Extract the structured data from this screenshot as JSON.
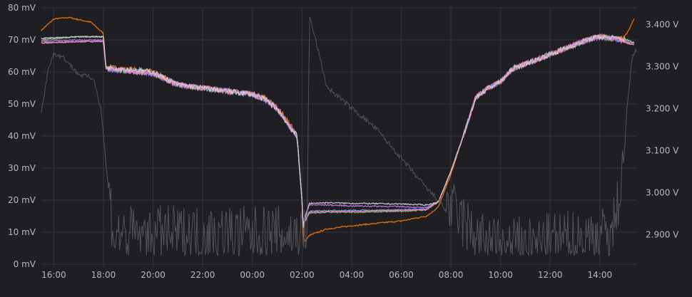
{
  "chart_data": {
    "type": "line",
    "grid": true,
    "legend": "none",
    "x": {
      "ticks": [
        "16:00",
        "18:00",
        "20:00",
        "22:00",
        "00:00",
        "02:00",
        "04:00",
        "06:00",
        "08:00",
        "10:00",
        "12:00",
        "14:00"
      ],
      "range_hours": [
        15.5,
        39.5
      ]
    },
    "y_left": {
      "ticks": [
        "0 mV",
        "10 mV",
        "20 mV",
        "30 mV",
        "40 mV",
        "50 mV",
        "60 mV",
        "70 mV",
        "80 mV"
      ],
      "range": [
        0,
        80
      ],
      "unit": "mV"
    },
    "y_right": {
      "ticks": [
        "2.900 V",
        "3.000 V",
        "3.100 V",
        "3.200 V",
        "3.300 V",
        "3.400 V"
      ],
      "range": [
        2.83,
        3.44
      ],
      "unit": "V"
    },
    "colors": {
      "orange": "#e8740f",
      "green": "#73bf69",
      "blue": "#5794f2",
      "purple": "#b877d9",
      "pink": "#ff7eb3",
      "gray": "#5a5a60",
      "light": "#c8c8cc"
    },
    "series": [
      {
        "color": "orange",
        "axis": "left",
        "points": [
          [
            15.5,
            73
          ],
          [
            16.0,
            76.5
          ],
          [
            16.6,
            77
          ],
          [
            17.5,
            75.5
          ],
          [
            18.0,
            72
          ],
          [
            18.1,
            61.5
          ],
          [
            20,
            60
          ],
          [
            21,
            56
          ],
          [
            22,
            55
          ],
          [
            23,
            54
          ],
          [
            24,
            53
          ],
          [
            24.5,
            52
          ],
          [
            25,
            49
          ],
          [
            25.5,
            44
          ],
          [
            25.8,
            40
          ],
          [
            26.0,
            20
          ],
          [
            26.05,
            9
          ],
          [
            26.1,
            7
          ],
          [
            26.3,
            9
          ],
          [
            27,
            11
          ],
          [
            28,
            12
          ],
          [
            30,
            13.5
          ],
          [
            31,
            15
          ],
          [
            31.2,
            16
          ],
          [
            31.5,
            18
          ],
          [
            32.0,
            28
          ],
          [
            32.5,
            40
          ],
          [
            33.0,
            52
          ],
          [
            33.5,
            55
          ],
          [
            34,
            57
          ],
          [
            34.5,
            61
          ],
          [
            35.5,
            64
          ],
          [
            36.5,
            67
          ],
          [
            37.5,
            70
          ],
          [
            38,
            71
          ],
          [
            38.8,
            70.5
          ],
          [
            39.1,
            72
          ],
          [
            39.4,
            77
          ]
        ]
      },
      {
        "color": "green",
        "axis": "left",
        "points": [
          [
            15.5,
            70
          ],
          [
            17,
            71
          ],
          [
            18.0,
            71
          ],
          [
            18.1,
            61
          ],
          [
            20,
            59.5
          ],
          [
            21,
            56
          ],
          [
            22,
            55
          ],
          [
            23,
            54
          ],
          [
            24,
            53
          ],
          [
            24.5,
            51.5
          ],
          [
            25,
            48.5
          ],
          [
            25.5,
            43
          ],
          [
            25.8,
            40
          ],
          [
            26.0,
            20
          ],
          [
            26.05,
            11
          ],
          [
            26.1,
            13
          ],
          [
            26.3,
            16
          ],
          [
            27,
            16.2
          ],
          [
            28,
            16.2
          ],
          [
            30,
            16.5
          ],
          [
            31,
            17
          ],
          [
            31.2,
            18
          ],
          [
            31.5,
            19.5
          ],
          [
            32.0,
            29
          ],
          [
            32.5,
            40
          ],
          [
            33.0,
            52
          ],
          [
            33.5,
            55
          ],
          [
            34,
            57
          ],
          [
            34.5,
            61
          ],
          [
            35.5,
            64
          ],
          [
            36.5,
            67
          ],
          [
            37.5,
            70
          ],
          [
            38,
            71
          ],
          [
            38.8,
            70
          ],
          [
            39.1,
            69.5
          ],
          [
            39.4,
            69
          ]
        ]
      },
      {
        "color": "blue",
        "axis": "left",
        "points": [
          [
            15.5,
            69
          ],
          [
            17,
            69.5
          ],
          [
            18.0,
            69.5
          ],
          [
            18.1,
            61
          ],
          [
            20,
            59.5
          ],
          [
            21,
            56
          ],
          [
            22,
            55
          ],
          [
            23,
            54
          ],
          [
            24,
            53
          ],
          [
            24.5,
            51.5
          ],
          [
            25,
            48.5
          ],
          [
            25.5,
            43
          ],
          [
            25.8,
            40
          ],
          [
            26.0,
            20
          ],
          [
            26.05,
            11
          ],
          [
            26.1,
            13.5
          ],
          [
            26.3,
            16.5
          ],
          [
            27,
            16.8
          ],
          [
            28,
            16.8
          ],
          [
            30,
            17
          ],
          [
            31,
            17.3
          ],
          [
            31.2,
            18.3
          ],
          [
            31.5,
            19.5
          ],
          [
            32.0,
            29
          ],
          [
            32.5,
            40
          ],
          [
            33.0,
            52
          ],
          [
            33.5,
            55
          ],
          [
            34,
            57
          ],
          [
            34.5,
            61
          ],
          [
            35.5,
            64
          ],
          [
            36.5,
            67
          ],
          [
            37.5,
            70
          ],
          [
            38,
            71
          ],
          [
            38.8,
            70
          ],
          [
            39.1,
            69
          ],
          [
            39.4,
            68.5
          ]
        ]
      },
      {
        "color": "purple",
        "axis": "left",
        "points": [
          [
            15.5,
            69.5
          ],
          [
            17,
            70
          ],
          [
            18.0,
            70
          ],
          [
            18.1,
            61
          ],
          [
            20,
            59.5
          ],
          [
            21,
            56
          ],
          [
            22,
            55
          ],
          [
            23,
            54
          ],
          [
            24,
            53
          ],
          [
            24.5,
            51.5
          ],
          [
            25,
            48.5
          ],
          [
            25.5,
            43
          ],
          [
            25.8,
            40
          ],
          [
            26.0,
            20
          ],
          [
            26.05,
            11
          ],
          [
            26.1,
            14
          ],
          [
            26.3,
            18.5
          ],
          [
            27,
            18.5
          ],
          [
            28,
            18.2
          ],
          [
            30,
            18
          ],
          [
            31,
            17.6
          ],
          [
            31.2,
            18.3
          ],
          [
            31.5,
            19.5
          ],
          [
            32.0,
            29
          ],
          [
            32.5,
            40
          ],
          [
            33.0,
            52
          ],
          [
            33.5,
            55
          ],
          [
            34,
            57
          ],
          [
            34.5,
            61
          ],
          [
            35.5,
            64
          ],
          [
            36.5,
            67
          ],
          [
            37.5,
            70
          ],
          [
            38,
            71
          ],
          [
            38.8,
            70
          ],
          [
            39.1,
            69
          ],
          [
            39.4,
            68.5
          ]
        ]
      },
      {
        "color": "pink",
        "axis": "left",
        "points": [
          [
            15.5,
            69
          ],
          [
            17,
            69.5
          ],
          [
            18.0,
            69.5
          ],
          [
            18.1,
            61
          ],
          [
            20,
            59.5
          ],
          [
            21,
            56
          ],
          [
            22,
            55
          ],
          [
            23,
            54
          ],
          [
            24,
            53
          ],
          [
            24.5,
            51.5
          ],
          [
            25,
            48.5
          ],
          [
            25.5,
            43
          ],
          [
            25.8,
            40
          ],
          [
            26.0,
            20
          ],
          [
            26.05,
            11
          ],
          [
            26.1,
            13
          ],
          [
            26.3,
            16.2
          ],
          [
            27,
            16.5
          ],
          [
            28,
            16.5
          ],
          [
            30,
            16.8
          ],
          [
            31,
            17
          ],
          [
            31.2,
            18
          ],
          [
            31.5,
            19.5
          ],
          [
            32.0,
            29
          ],
          [
            32.5,
            40
          ],
          [
            33.0,
            52
          ],
          [
            33.5,
            55
          ],
          [
            34,
            57
          ],
          [
            34.5,
            61
          ],
          [
            35.5,
            64
          ],
          [
            36.5,
            67
          ],
          [
            37.5,
            70
          ],
          [
            38,
            71
          ],
          [
            38.8,
            70
          ],
          [
            39.1,
            69
          ],
          [
            39.4,
            68.5
          ]
        ]
      },
      {
        "color": "light",
        "axis": "left",
        "points": [
          [
            15.5,
            70.5
          ],
          [
            17,
            71
          ],
          [
            18.0,
            71
          ],
          [
            18.1,
            61.5
          ],
          [
            20,
            60
          ],
          [
            21,
            56
          ],
          [
            22,
            55
          ],
          [
            23,
            54
          ],
          [
            24,
            53
          ],
          [
            24.5,
            51.5
          ],
          [
            25,
            48.5
          ],
          [
            25.5,
            43
          ],
          [
            25.8,
            40
          ],
          [
            26.0,
            20
          ],
          [
            26.05,
            11
          ],
          [
            26.1,
            14
          ],
          [
            26.3,
            19
          ],
          [
            27,
            19.2
          ],
          [
            28,
            19
          ],
          [
            30,
            18.8
          ],
          [
            31,
            18.5
          ],
          [
            31.2,
            18.8
          ],
          [
            31.5,
            19.5
          ],
          [
            32.0,
            29
          ],
          [
            32.5,
            40
          ],
          [
            33.0,
            52
          ],
          [
            33.5,
            55
          ],
          [
            34,
            57
          ],
          [
            34.5,
            61
          ],
          [
            35.5,
            64
          ],
          [
            36.5,
            67
          ],
          [
            37.5,
            70
          ],
          [
            38,
            71
          ],
          [
            38.8,
            70.5
          ],
          [
            39.1,
            70
          ],
          [
            39.4,
            69
          ]
        ]
      },
      {
        "color": "gray",
        "axis": "right",
        "points": [
          [
            15.5,
            3.19
          ],
          [
            15.8,
            3.3
          ],
          [
            16.0,
            3.33
          ],
          [
            16.4,
            3.32
          ],
          [
            17.0,
            3.28
          ],
          [
            17.6,
            3.27
          ],
          [
            17.9,
            3.2
          ],
          [
            18.1,
            3.07
          ],
          [
            18.4,
            2.88
          ],
          [
            26.2,
            2.88
          ],
          [
            26.3,
            3.42
          ],
          [
            26.6,
            3.35
          ],
          [
            27.0,
            3.25
          ],
          [
            28.0,
            3.2
          ],
          [
            29.0,
            3.15
          ],
          [
            30.0,
            3.08
          ],
          [
            31.0,
            3.01
          ],
          [
            31.5,
            2.98
          ],
          [
            32.0,
            2.94
          ],
          [
            32.5,
            2.91
          ],
          [
            33.0,
            2.87
          ],
          [
            33.5,
            2.86
          ],
          [
            34.0,
            2.85
          ],
          [
            38.5,
            2.88
          ],
          [
            38.9,
            3.02
          ],
          [
            39.1,
            3.2
          ],
          [
            39.3,
            3.32
          ],
          [
            39.5,
            3.34
          ]
        ]
      }
    ]
  }
}
